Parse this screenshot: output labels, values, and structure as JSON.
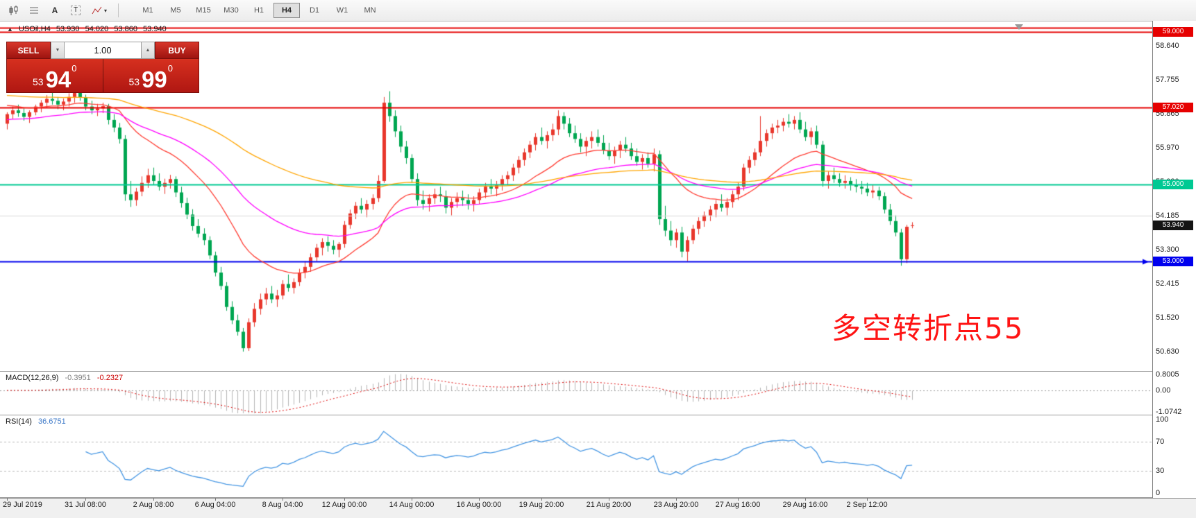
{
  "toolbar": {
    "tools": [
      {
        "name": "candlestick-chart-icon",
        "type": "candles"
      },
      {
        "name": "grid-icon",
        "type": "grid"
      },
      {
        "name": "cursor-tool-icon",
        "type": "A",
        "glyph": "A"
      },
      {
        "name": "text-label-icon",
        "type": "T",
        "glyph": "T"
      },
      {
        "name": "indicators-icon",
        "type": "arrow",
        "caret": true
      }
    ],
    "timeframes": [
      {
        "label": "M1",
        "active": false
      },
      {
        "label": "M5",
        "active": false
      },
      {
        "label": "M15",
        "active": false
      },
      {
        "label": "M30",
        "active": false
      },
      {
        "label": "H1",
        "active": false
      },
      {
        "label": "H4",
        "active": true
      },
      {
        "label": "D1",
        "active": false
      },
      {
        "label": "W1",
        "active": false
      },
      {
        "label": "MN",
        "active": false
      }
    ]
  },
  "symbol_line": {
    "direction_icon": "▲",
    "symbol": "USOil,H4",
    "open": "53.930",
    "high": "54.020",
    "low": "53.860",
    "close": "53.940"
  },
  "trade_panel": {
    "sell_label": "SELL",
    "buy_label": "BUY",
    "volume": "1.00",
    "spin_down_icon": "▼",
    "spin_up_icon": "▲",
    "bid": {
      "prefix": "53",
      "big": "94",
      "sup": "0"
    },
    "ask": {
      "prefix": "53",
      "big": "99",
      "sup": "0"
    }
  },
  "annotation": {
    "text": "多空转折点55",
    "color": "#ff1414"
  },
  "price_axis": {
    "ticks": [
      {
        "label": "58.640",
        "value": 58.64
      },
      {
        "label": "57.755",
        "value": 57.755
      },
      {
        "label": "56.865",
        "value": 56.865
      },
      {
        "label": "55.970",
        "value": 55.97
      },
      {
        "label": "55.080",
        "value": 55.08
      },
      {
        "label": "54.185",
        "value": 54.185
      },
      {
        "label": "53.300",
        "value": 53.3
      },
      {
        "label": "52.415",
        "value": 52.415
      },
      {
        "label": "51.520",
        "value": 51.52
      },
      {
        "label": "50.630",
        "value": 50.63
      }
    ]
  },
  "hlines": [
    {
      "price": 59.12,
      "color": "#e60000",
      "width": 2
    },
    {
      "price": 59.0,
      "color": "#e60000",
      "width": 2,
      "badge": "59.000"
    },
    {
      "price": 57.02,
      "color": "#e60000",
      "width": 2,
      "badge": "57.020"
    },
    {
      "price": 55.0,
      "color": "#00c993",
      "width": 2,
      "badge": "55.000"
    },
    {
      "price": 54.185,
      "color": "#d9d9d9",
      "width": 1
    },
    {
      "price": 53.0,
      "color": "#0000ee",
      "width": 2,
      "badge": "53.000",
      "arrow": true
    }
  ],
  "current_price": {
    "value": 53.94,
    "label": "53.940",
    "badge_color": "#141414"
  },
  "indicators": {
    "macd": {
      "label": "MACD(12,26,9)",
      "value_main": "-0.3951",
      "value_signal": "-0.2327",
      "axis": [
        {
          "label": "0.8005",
          "value": 0.8005
        },
        {
          "label": "0.00",
          "value": 0
        },
        {
          "label": "-1.0742",
          "value": -1.0742
        }
      ],
      "scale_max": 0.8005,
      "scale_min": -1.0742,
      "fast": 12,
      "slow": 26,
      "signal": 9,
      "hist_color": "#b4b4b4",
      "signal_color": "#dd0000"
    },
    "rsi": {
      "label": "RSI(14)",
      "value": "36.6751",
      "period": 14,
      "axis": [
        {
          "label": "100",
          "value": 100
        },
        {
          "label": "70",
          "value": 70
        },
        {
          "label": "30",
          "value": 30
        },
        {
          "label": "0",
          "value": 0
        }
      ],
      "levels": [
        70,
        30
      ],
      "line_color": "#4596e3"
    }
  },
  "time_axis": {
    "labels": [
      {
        "text": "29 Jul 2019",
        "candle": 0
      },
      {
        "text": "31 Jul 08:00",
        "candle": 14
      },
      {
        "text": "2 Aug 08:00",
        "candle": 26
      },
      {
        "text": "6 Aug 04:00",
        "candle": 37
      },
      {
        "text": "8 Aug 04:00",
        "candle": 49
      },
      {
        "text": "12 Aug 00:00",
        "candle": 60
      },
      {
        "text": "14 Aug 00:00",
        "candle": 72
      },
      {
        "text": "16 Aug 00:00",
        "candle": 84
      },
      {
        "text": "19 Aug 20:00",
        "candle": 95
      },
      {
        "text": "21 Aug 20:00",
        "candle": 107
      },
      {
        "text": "23 Aug 20:00",
        "candle": 119
      },
      {
        "text": "27 Aug 16:00",
        "candle": 130
      },
      {
        "text": "29 Aug 16:00",
        "candle": 142
      },
      {
        "text": "2 Sep 12:00",
        "candle": 153
      }
    ]
  },
  "chart_data": {
    "type": "candlestick",
    "symbol": "USOil",
    "timeframe": "H4",
    "price_scale": {
      "max": 59.15,
      "min": 50.25
    },
    "colors": {
      "bull": "#e8372c",
      "bear": "#00a651"
    },
    "moving_averages": [
      {
        "name": "ma-fast-red",
        "period": 21,
        "seed": 57.1,
        "color": "#ff3c32"
      },
      {
        "name": "ma-mid-magenta",
        "period": 45,
        "seed": 56.7,
        "color": "#ff00ff"
      },
      {
        "name": "ma-slow-orange",
        "period": 100,
        "seed": 57.35,
        "color": "#ffa500"
      }
    ],
    "candles": [
      [
        56.6,
        56.9,
        56.45,
        56.85
      ],
      [
        56.85,
        57.05,
        56.72,
        56.95
      ],
      [
        56.95,
        57.1,
        56.78,
        56.88
      ],
      [
        56.88,
        57.0,
        56.68,
        56.78
      ],
      [
        56.78,
        56.95,
        56.62,
        56.9
      ],
      [
        56.9,
        57.1,
        56.82,
        57.05
      ],
      [
        57.05,
        57.22,
        56.9,
        57.15
      ],
      [
        57.15,
        57.35,
        57.02,
        57.25
      ],
      [
        57.25,
        57.45,
        57.1,
        57.2
      ],
      [
        57.2,
        57.3,
        56.98,
        57.1
      ],
      [
        57.1,
        57.26,
        56.95,
        57.18
      ],
      [
        57.18,
        57.4,
        57.05,
        57.3
      ],
      [
        57.3,
        57.52,
        57.15,
        57.42
      ],
      [
        57.42,
        57.55,
        57.2,
        57.28
      ],
      [
        57.28,
        57.36,
        56.95,
        57.05
      ],
      [
        57.05,
        57.2,
        56.85,
        56.95
      ],
      [
        56.95,
        57.12,
        56.8,
        57.0
      ],
      [
        57.0,
        57.15,
        56.88,
        57.06
      ],
      [
        57.06,
        57.12,
        56.58,
        56.7
      ],
      [
        56.7,
        56.85,
        56.38,
        56.5
      ],
      [
        56.5,
        56.62,
        56.08,
        56.2
      ],
      [
        56.2,
        56.3,
        54.58,
        54.75
      ],
      [
        54.75,
        55.1,
        54.42,
        54.6
      ],
      [
        54.6,
        54.92,
        54.45,
        54.82
      ],
      [
        54.82,
        55.22,
        54.7,
        55.05
      ],
      [
        55.05,
        55.42,
        54.92,
        55.25
      ],
      [
        55.25,
        55.45,
        55.0,
        55.1
      ],
      [
        55.1,
        55.3,
        54.85,
        54.95
      ],
      [
        54.95,
        55.16,
        54.76,
        55.05
      ],
      [
        55.05,
        55.26,
        54.9,
        55.15
      ],
      [
        55.15,
        55.22,
        54.68,
        54.8
      ],
      [
        54.8,
        54.95,
        54.4,
        54.52
      ],
      [
        54.52,
        54.66,
        54.1,
        54.22
      ],
      [
        54.22,
        54.36,
        53.8,
        53.92
      ],
      [
        53.92,
        54.1,
        53.62,
        53.72
      ],
      [
        53.72,
        53.86,
        53.42,
        53.55
      ],
      [
        53.55,
        53.65,
        53.05,
        53.15
      ],
      [
        53.15,
        53.25,
        52.6,
        52.7
      ],
      [
        52.7,
        52.85,
        52.25,
        52.35
      ],
      [
        52.35,
        52.45,
        51.7,
        51.8
      ],
      [
        51.8,
        51.95,
        51.35,
        51.45
      ],
      [
        51.45,
        51.6,
        51.05,
        51.15
      ],
      [
        51.15,
        51.25,
        50.63,
        50.72
      ],
      [
        50.72,
        51.5,
        50.65,
        51.4
      ],
      [
        51.4,
        51.9,
        51.28,
        51.75
      ],
      [
        51.75,
        52.15,
        51.6,
        52.0
      ],
      [
        52.0,
        52.3,
        51.85,
        52.15
      ],
      [
        52.15,
        52.35,
        51.9,
        52.0
      ],
      [
        52.0,
        52.25,
        51.8,
        52.1
      ],
      [
        52.1,
        52.5,
        52.0,
        52.4
      ],
      [
        52.4,
        52.65,
        52.2,
        52.3
      ],
      [
        52.3,
        52.55,
        52.15,
        52.45
      ],
      [
        52.45,
        52.8,
        52.35,
        52.7
      ],
      [
        52.7,
        53.0,
        52.55,
        52.85
      ],
      [
        52.85,
        53.2,
        52.72,
        53.1
      ],
      [
        53.1,
        53.45,
        53.0,
        53.35
      ],
      [
        53.35,
        53.6,
        53.15,
        53.5
      ],
      [
        53.5,
        53.65,
        53.25,
        53.4
      ],
      [
        53.4,
        53.55,
        53.18,
        53.3
      ],
      [
        53.3,
        53.5,
        53.1,
        53.45
      ],
      [
        53.45,
        54.05,
        53.35,
        53.95
      ],
      [
        53.95,
        54.35,
        53.85,
        54.25
      ],
      [
        54.25,
        54.55,
        54.1,
        54.45
      ],
      [
        54.45,
        54.65,
        54.25,
        54.35
      ],
      [
        54.35,
        54.6,
        54.15,
        54.5
      ],
      [
        54.5,
        54.75,
        54.35,
        54.65
      ],
      [
        54.65,
        55.25,
        54.55,
        55.1
      ],
      [
        55.1,
        57.3,
        55.05,
        57.15
      ],
      [
        57.15,
        57.45,
        56.65,
        56.8
      ],
      [
        56.8,
        56.95,
        56.25,
        56.4
      ],
      [
        56.4,
        56.55,
        55.85,
        56.0
      ],
      [
        56.0,
        56.15,
        55.55,
        55.7
      ],
      [
        55.7,
        55.8,
        55.05,
        55.15
      ],
      [
        55.15,
        55.3,
        54.45,
        54.6
      ],
      [
        54.6,
        54.85,
        54.35,
        54.5
      ],
      [
        54.5,
        54.75,
        54.3,
        54.65
      ],
      [
        54.65,
        54.9,
        54.5,
        54.75
      ],
      [
        54.75,
        54.95,
        54.55,
        54.7
      ],
      [
        54.7,
        54.85,
        54.25,
        54.4
      ],
      [
        54.4,
        54.65,
        54.2,
        54.55
      ],
      [
        54.55,
        54.8,
        54.4,
        54.65
      ],
      [
        54.65,
        54.85,
        54.45,
        54.6
      ],
      [
        54.6,
        54.75,
        54.35,
        54.5
      ],
      [
        54.5,
        54.7,
        54.3,
        54.6
      ],
      [
        54.6,
        54.9,
        54.5,
        54.8
      ],
      [
        54.8,
        55.05,
        54.65,
        54.95
      ],
      [
        54.95,
        55.15,
        54.75,
        54.9
      ],
      [
        54.9,
        55.1,
        54.7,
        55.0
      ],
      [
        55.0,
        55.25,
        54.85,
        55.15
      ],
      [
        55.15,
        55.35,
        55.0,
        55.25
      ],
      [
        55.25,
        55.55,
        55.1,
        55.45
      ],
      [
        55.45,
        55.75,
        55.3,
        55.65
      ],
      [
        55.65,
        55.95,
        55.5,
        55.85
      ],
      [
        55.85,
        56.15,
        55.7,
        56.05
      ],
      [
        56.05,
        56.35,
        55.9,
        56.25
      ],
      [
        56.25,
        56.5,
        56.05,
        56.15
      ],
      [
        56.15,
        56.4,
        55.95,
        56.3
      ],
      [
        56.3,
        56.6,
        56.15,
        56.45
      ],
      [
        56.45,
        56.95,
        56.3,
        56.8
      ],
      [
        56.8,
        56.9,
        56.45,
        56.6
      ],
      [
        56.6,
        56.75,
        56.25,
        56.35
      ],
      [
        56.35,
        56.55,
        56.1,
        56.2
      ],
      [
        56.2,
        56.35,
        55.85,
        56.0
      ],
      [
        56.0,
        56.25,
        55.75,
        56.15
      ],
      [
        56.15,
        56.4,
        55.95,
        56.25
      ],
      [
        56.25,
        56.45,
        56.0,
        56.1
      ],
      [
        56.1,
        56.3,
        55.8,
        55.9
      ],
      [
        55.9,
        56.1,
        55.65,
        55.75
      ],
      [
        55.75,
        56.0,
        55.55,
        55.9
      ],
      [
        55.9,
        56.15,
        55.7,
        56.05
      ],
      [
        56.05,
        56.25,
        55.85,
        55.95
      ],
      [
        55.95,
        56.1,
        55.65,
        55.75
      ],
      [
        55.75,
        55.95,
        55.5,
        55.6
      ],
      [
        55.6,
        55.8,
        55.4,
        55.7
      ],
      [
        55.7,
        55.85,
        55.45,
        55.55
      ],
      [
        55.55,
        55.95,
        55.35,
        55.8
      ],
      [
        55.8,
        55.9,
        53.95,
        54.1
      ],
      [
        54.1,
        54.45,
        53.65,
        53.8
      ],
      [
        53.8,
        54.05,
        53.4,
        53.55
      ],
      [
        53.55,
        53.85,
        53.35,
        53.75
      ],
      [
        53.75,
        53.9,
        53.1,
        53.25
      ],
      [
        53.25,
        53.65,
        53.0,
        53.55
      ],
      [
        53.55,
        53.95,
        53.45,
        53.85
      ],
      [
        53.85,
        54.15,
        53.7,
        54.05
      ],
      [
        54.05,
        54.3,
        53.9,
        54.2
      ],
      [
        54.2,
        54.45,
        54.05,
        54.35
      ],
      [
        54.35,
        54.6,
        54.15,
        54.5
      ],
      [
        54.5,
        54.75,
        54.3,
        54.4
      ],
      [
        54.4,
        54.65,
        54.2,
        54.55
      ],
      [
        54.55,
        54.85,
        54.4,
        54.75
      ],
      [
        54.75,
        55.05,
        54.6,
        54.95
      ],
      [
        54.95,
        55.55,
        54.85,
        55.45
      ],
      [
        55.45,
        55.75,
        55.3,
        55.65
      ],
      [
        55.65,
        55.95,
        55.5,
        55.85
      ],
      [
        55.85,
        56.8,
        55.75,
        56.15
      ],
      [
        56.15,
        56.45,
        56.0,
        56.35
      ],
      [
        56.35,
        56.6,
        56.2,
        56.5
      ],
      [
        56.5,
        56.7,
        56.35,
        56.55
      ],
      [
        56.55,
        56.75,
        56.4,
        56.65
      ],
      [
        56.65,
        56.85,
        56.5,
        56.6
      ],
      [
        56.6,
        56.8,
        56.45,
        56.7
      ],
      [
        56.7,
        56.9,
        56.35,
        56.45
      ],
      [
        56.45,
        56.65,
        56.15,
        56.25
      ],
      [
        56.25,
        56.5,
        56.05,
        56.4
      ],
      [
        56.4,
        56.55,
        55.95,
        56.05
      ],
      [
        56.05,
        56.15,
        54.95,
        55.1
      ],
      [
        55.1,
        55.35,
        54.9,
        55.25
      ],
      [
        55.25,
        55.45,
        55.05,
        55.15
      ],
      [
        55.15,
        55.3,
        54.95,
        55.05
      ],
      [
        55.05,
        55.25,
        54.9,
        55.1
      ],
      [
        55.1,
        55.2,
        54.85,
        55.0
      ],
      [
        55.0,
        55.15,
        54.8,
        54.95
      ],
      [
        54.95,
        55.1,
        54.75,
        54.9
      ],
      [
        54.9,
        55.05,
        54.7,
        54.8
      ],
      [
        54.8,
        55.0,
        54.65,
        54.85
      ],
      [
        54.85,
        54.95,
        54.6,
        54.7
      ],
      [
        54.7,
        54.8,
        54.25,
        54.35
      ],
      [
        54.35,
        54.5,
        53.95,
        54.05
      ],
      [
        54.05,
        54.2,
        53.65,
        53.75
      ],
      [
        53.75,
        53.85,
        52.88,
        53.05
      ],
      [
        53.05,
        53.95,
        52.95,
        53.9
      ],
      [
        53.93,
        54.02,
        53.86,
        53.94
      ]
    ]
  }
}
